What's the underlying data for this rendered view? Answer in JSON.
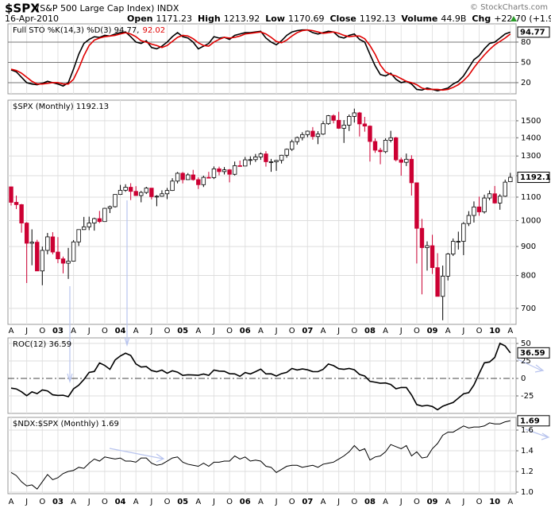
{
  "header": {
    "symbol": "$SPX",
    "name": "(S&P 500 Large Cap Index) INDX",
    "watermark": "© StockCharts.com",
    "date": "16-Apr-2010",
    "quote": [
      {
        "label": "Open",
        "value": 1171.23
      },
      {
        "label": "High",
        "value": 1213.92
      },
      {
        "label": "Low",
        "value": 1170.69
      },
      {
        "label": "Close",
        "value": 1192.13
      },
      {
        "label": "Volume",
        "value": "44.9B"
      },
      {
        "label": "Chg",
        "value": "+22.70 (+1.94%)"
      }
    ]
  },
  "chart_data": [
    {
      "type": "line",
      "title": "Full STO %K(14,3) %D(3) 94.77,",
      "title_red": "92.02",
      "ylim": [
        3.5,
        107
      ],
      "yticks": [
        20,
        50,
        80
      ],
      "grid": true,
      "grid_color": "#777777",
      "series": [
        {
          "color": "#000000",
          "values": [
            39,
            36,
            28,
            20,
            18,
            17,
            19,
            22,
            20,
            18,
            15,
            20,
            40,
            62,
            78,
            84,
            88,
            87,
            90,
            89,
            92,
            94,
            95,
            88,
            80,
            78,
            82,
            72,
            70,
            74,
            80,
            88,
            94,
            88,
            86,
            80,
            70,
            74,
            78,
            88,
            86,
            87,
            84,
            90,
            92,
            94,
            94,
            95,
            96,
            86,
            80,
            76,
            82,
            90,
            95,
            97,
            98,
            98,
            94,
            92,
            94,
            96,
            95,
            88,
            86,
            90,
            92,
            84,
            80,
            62,
            45,
            32,
            30,
            34,
            25,
            20,
            22,
            18,
            10,
            9,
            12,
            10,
            8,
            10,
            12,
            18,
            22,
            30,
            42,
            54,
            60,
            70,
            78,
            80,
            86,
            92,
            94.77
          ]
        },
        {
          "color": "#e00000",
          "values": [
            40,
            38,
            34,
            28,
            22,
            18,
            18,
            19,
            20,
            20,
            18,
            18,
            25,
            41,
            60,
            75,
            83,
            86,
            88,
            89,
            90,
            92,
            94,
            92,
            88,
            82,
            80,
            77,
            75,
            72,
            75,
            81,
            87,
            90,
            89,
            85,
            79,
            75,
            74,
            80,
            84,
            87,
            86,
            87,
            89,
            92,
            93,
            94,
            95,
            92,
            87,
            81,
            79,
            83,
            89,
            94,
            97,
            98,
            97,
            95,
            93,
            94,
            95,
            93,
            90,
            88,
            89,
            89,
            85,
            75,
            62,
            46,
            36,
            32,
            30,
            26,
            22,
            20,
            17,
            12,
            10,
            10,
            10,
            9,
            10,
            13,
            17,
            23,
            31,
            42,
            52,
            61,
            69,
            76,
            81,
            86,
            92.02
          ]
        }
      ]
    },
    {
      "type": "candlestick",
      "title": "$SPX (Monthly) 1192.13",
      "log_scale": true,
      "ylim": [
        656,
        1631
      ],
      "yticks": [
        700,
        800,
        900,
        1000,
        1100,
        1200,
        1300,
        1400,
        1500
      ],
      "grid": true,
      "grid_color": "#dddddd",
      "up_color": "#ffffff",
      "down_color": "#cc0033",
      "categories": [
        "A",
        null,
        null,
        "J",
        null,
        null,
        "O",
        null,
        null,
        "03",
        null,
        null,
        "A",
        null,
        null,
        "J",
        null,
        null,
        "O",
        null,
        null,
        "04",
        null,
        null,
        "A",
        null,
        null,
        "J",
        null,
        null,
        "O",
        null,
        null,
        "05",
        null,
        null,
        "A",
        null,
        null,
        "J",
        null,
        null,
        "O",
        null,
        null,
        "06",
        null,
        null,
        "A",
        null,
        null,
        "J",
        null,
        null,
        "O",
        null,
        null,
        "07",
        null,
        null,
        "A",
        null,
        null,
        "J",
        null,
        null,
        "O",
        null,
        null,
        "08",
        null,
        null,
        "A",
        null,
        null,
        "J",
        null,
        null,
        "O",
        null,
        null,
        "09",
        null,
        null,
        "A",
        null,
        null,
        "J",
        null,
        null,
        "O",
        null,
        null,
        "10",
        null,
        null,
        "A"
      ],
      "open": [
        1147,
        1077,
        1067,
        990,
        912,
        916,
        815,
        886,
        936,
        880,
        856,
        841,
        848,
        917,
        964,
        975,
        990,
        1008,
        996,
        1051,
        1058,
        1112,
        1131,
        1145,
        1126,
        1107,
        1121,
        1141,
        1102,
        1104,
        1115,
        1130,
        1174,
        1212,
        1181,
        1204,
        1181,
        1157,
        1192,
        1191,
        1234,
        1220,
        1229,
        1207,
        1250,
        1248,
        1280,
        1281,
        1295,
        1311,
        1270,
        1270,
        1277,
        1304,
        1336,
        1378,
        1401,
        1418,
        1438,
        1407,
        1421,
        1482,
        1531,
        1503,
        1455,
        1474,
        1527,
        1549,
        1481,
        1468,
        1379,
        1331,
        1323,
        1386,
        1400,
        1280,
        1267,
        1283,
        1166,
        969,
        896,
        903,
        826,
        735,
        798,
        873,
        919,
        919,
        988,
        1021,
        1057,
        1036,
        1096,
        1115,
        1074,
        1104,
        1171.23
      ],
      "high": [
        1147,
        1107,
        1070,
        994,
        965,
        925,
        900,
        951,
        954,
        935,
        864,
        895,
        924,
        965,
        1015,
        1016,
        1012,
        1040,
        1053,
        1063,
        1112,
        1156,
        1159,
        1164,
        1150,
        1128,
        1147,
        1141,
        1109,
        1131,
        1142,
        1188,
        1218,
        1218,
        1213,
        1229,
        1192,
        1200,
        1219,
        1246,
        1245,
        1243,
        1233,
        1271,
        1276,
        1295,
        1298,
        1311,
        1319,
        1326,
        1285,
        1280,
        1306,
        1340,
        1389,
        1407,
        1432,
        1441,
        1462,
        1438,
        1498,
        1535,
        1540,
        1556,
        1504,
        1539,
        1576,
        1555,
        1524,
        1472,
        1396,
        1344,
        1397,
        1440,
        1405,
        1292,
        1313,
        1304,
        1167,
        1007,
        919,
        944,
        876,
        833,
        877,
        930,
        956,
        994,
        1039,
        1081,
        1102,
        1111,
        1130,
        1151,
        1113,
        1181,
        1213.92
      ],
      "low": [
        1063,
        1048,
        952,
        776,
        834,
        815,
        769,
        872,
        872,
        841,
        807,
        789,
        847,
        902,
        963,
        962,
        960,
        990,
        995,
        1031,
        1054,
        1110,
        1124,
        1087,
        1107,
        1077,
        1114,
        1090,
        1060,
        1102,
        1091,
        1128,
        1163,
        1163,
        1180,
        1176,
        1137,
        1146,
        1188,
        1184,
        1202,
        1206,
        1168,
        1201,
        1246,
        1248,
        1254,
        1269,
        1280,
        1245,
        1219,
        1224,
        1261,
        1291,
        1327,
        1361,
        1385,
        1403,
        1389,
        1364,
        1416,
        1476,
        1484,
        1451,
        1371,
        1439,
        1489,
        1407,
        1435,
        1271,
        1317,
        1257,
        1315,
        1374,
        1272,
        1200,
        1248,
        1107,
        840,
        741,
        816,
        805,
        735,
        667,
        784,
        866,
        889,
        869,
        978,
        992,
        1020,
        1029,
        1086,
        1071,
        1045,
        1101,
        1170.69
      ],
      "close": [
        1077,
        1067,
        990,
        912,
        916,
        815,
        886,
        936,
        880,
        856,
        841,
        848,
        917,
        964,
        975,
        990,
        1008,
        996,
        1051,
        1058,
        1112,
        1131,
        1145,
        1126,
        1107,
        1121,
        1141,
        1102,
        1104,
        1115,
        1130,
        1174,
        1212,
        1181,
        1204,
        1181,
        1157,
        1192,
        1191,
        1234,
        1220,
        1229,
        1207,
        1250,
        1248,
        1280,
        1281,
        1295,
        1311,
        1270,
        1270,
        1277,
        1304,
        1336,
        1378,
        1401,
        1418,
        1438,
        1407,
        1421,
        1482,
        1531,
        1503,
        1455,
        1474,
        1527,
        1549,
        1481,
        1468,
        1379,
        1331,
        1323,
        1386,
        1400,
        1280,
        1267,
        1283,
        1166,
        969,
        896,
        903,
        826,
        735,
        798,
        873,
        919,
        919,
        988,
        1021,
        1057,
        1036,
        1096,
        1115,
        1074,
        1104,
        1169,
        1192.13
      ]
    },
    {
      "type": "line",
      "title": "ROC(12) 36.59",
      "ylim": [
        -50,
        58
      ],
      "yticks": [
        -25,
        0,
        25,
        50
      ],
      "grid": true,
      "grid_color": "#dddddd",
      "zero_line": true,
      "series": [
        {
          "color": "#000000",
          "values": [
            -13.8,
            -15.0,
            -19.1,
            -24.7,
            -19.2,
            -21.7,
            -16.4,
            -17.9,
            -23.4,
            -24.3,
            -24.0,
            -26.1,
            -14.9,
            -9.7,
            -1.5,
            8.6,
            10.0,
            22.2,
            18.6,
            13.0,
            26.4,
            32.1,
            36.1,
            32.8,
            20.7,
            16.3,
            17.0,
            11.3,
            9.5,
            11.9,
            7.5,
            11.0,
            9.0,
            4.4,
            5.2,
            4.9,
            4.5,
            6.3,
            4.4,
            12.0,
            10.5,
            10.2,
            6.8,
            6.5,
            3.0,
            8.4,
            6.4,
            9.7,
            13.3,
            6.5,
            6.6,
            3.5,
            6.9,
            8.7,
            14.2,
            12.1,
            13.6,
            12.3,
            9.8,
            9.7,
            13.0,
            20.6,
            18.3,
            13.9,
            13.0,
            14.3,
            12.4,
            5.7,
            3.5,
            -4.1,
            -5.4,
            -6.9,
            -6.5,
            -8.6,
            -14.8,
            -12.9,
            -13.0,
            -23.6,
            -37.4,
            -39.5,
            -38.5,
            -40.1,
            -44.8,
            -39.7,
            -37.0,
            -34.4,
            -28.2,
            -22.0,
            -20.4,
            -9.3,
            6.9,
            22.3,
            23.5,
            30.0,
            50.2,
            46.5,
            36.59
          ]
        }
      ]
    },
    {
      "type": "line",
      "title": "$NDX:$SPX (Monthly) 1.69",
      "ylim": [
        0.985,
        1.723
      ],
      "yticks": [
        {
          "value": 1,
          "label": "1.0"
        },
        1.2,
        1.4,
        1.6
      ],
      "grid": true,
      "grid_color": "#dddddd",
      "series": [
        {
          "color": "#000000",
          "values": [
            1.19,
            1.16,
            1.1,
            1.06,
            1.07,
            1.03,
            1.1,
            1.17,
            1.12,
            1.14,
            1.18,
            1.2,
            1.21,
            1.24,
            1.23,
            1.28,
            1.32,
            1.3,
            1.34,
            1.33,
            1.32,
            1.33,
            1.3,
            1.3,
            1.29,
            1.33,
            1.33,
            1.28,
            1.26,
            1.27,
            1.3,
            1.33,
            1.34,
            1.29,
            1.27,
            1.26,
            1.25,
            1.28,
            1.25,
            1.29,
            1.29,
            1.3,
            1.3,
            1.35,
            1.32,
            1.34,
            1.3,
            1.31,
            1.3,
            1.25,
            1.24,
            1.19,
            1.22,
            1.25,
            1.26,
            1.26,
            1.24,
            1.25,
            1.26,
            1.24,
            1.27,
            1.28,
            1.29,
            1.32,
            1.35,
            1.39,
            1.45,
            1.4,
            1.42,
            1.31,
            1.34,
            1.35,
            1.39,
            1.46,
            1.44,
            1.42,
            1.45,
            1.35,
            1.39,
            1.33,
            1.34,
            1.42,
            1.47,
            1.55,
            1.58,
            1.58,
            1.61,
            1.64,
            1.62,
            1.63,
            1.63,
            1.64,
            1.67,
            1.66,
            1.66,
            1.68,
            1.69
          ]
        }
      ]
    }
  ]
}
